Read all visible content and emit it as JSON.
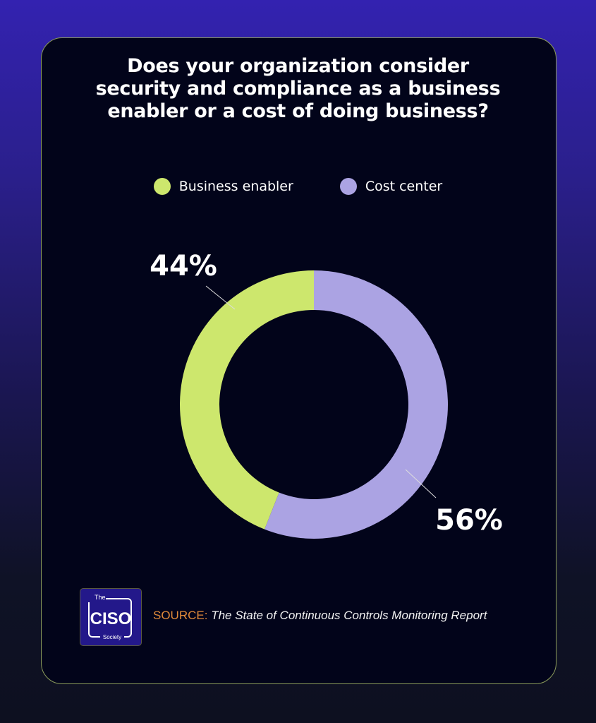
{
  "title_lines": [
    "Does your organization consider",
    "security and compliance as a business",
    "enabler or a cost of doing business?"
  ],
  "chart_data": {
    "type": "pie",
    "variant": "donut",
    "title": "Does your organization consider security and compliance as a business enabler or a cost of doing business?",
    "categories": [
      "Business enabler",
      "Cost center"
    ],
    "values": [
      44,
      56
    ],
    "labels": [
      "44%",
      "56%"
    ],
    "colors": [
      "#cde76d",
      "#aba3e3"
    ],
    "legend_position": "top"
  },
  "source": {
    "key": "SOURCE:",
    "value": "The State of Continuous Controls Monitoring Report"
  },
  "logo": {
    "top": "The",
    "main": "CISO",
    "bottom": "Society"
  }
}
